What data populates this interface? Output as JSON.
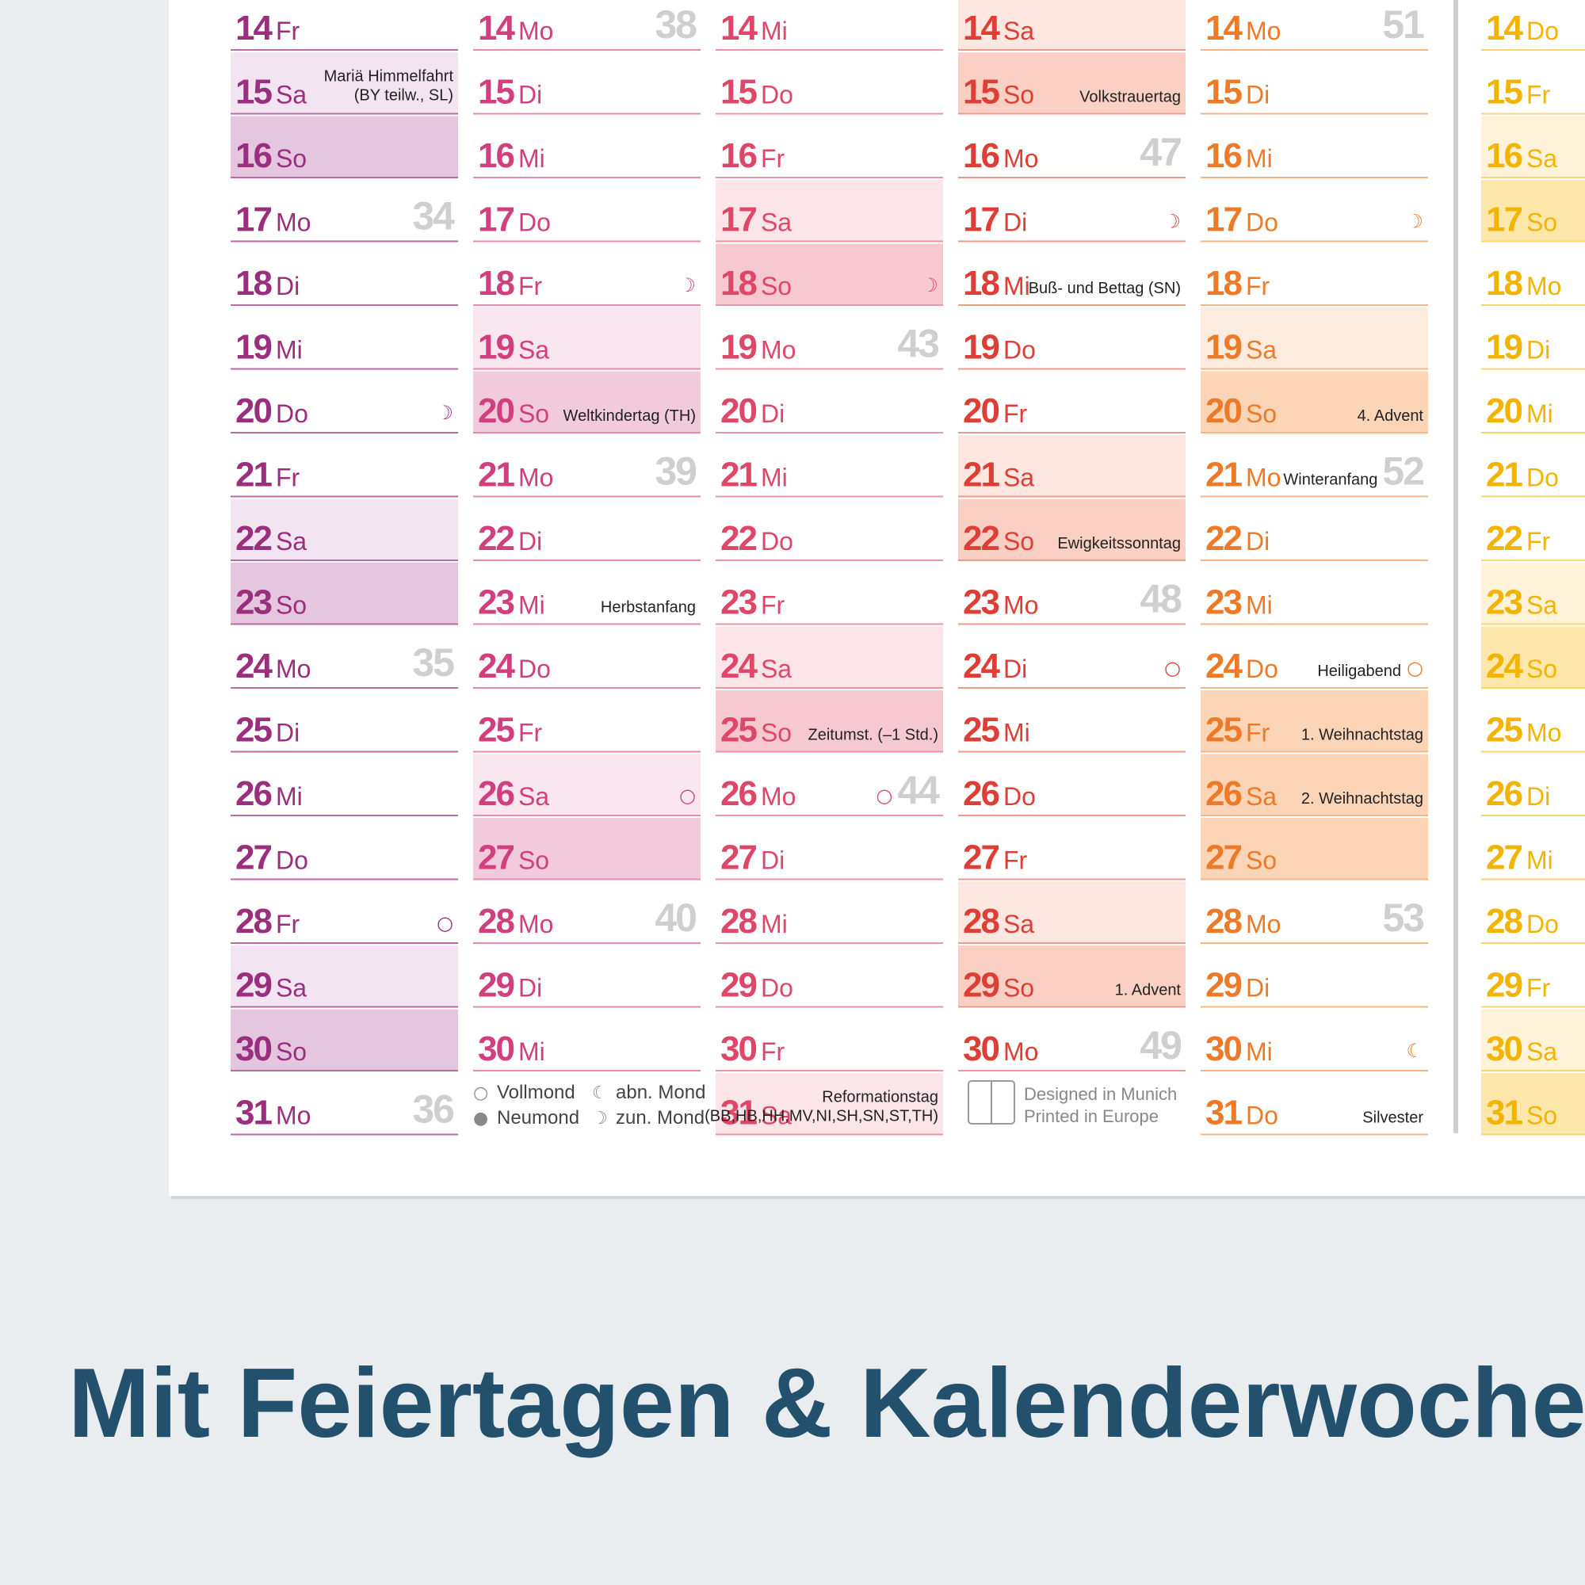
{
  "caption": "Mit Feiertagen & Kalenderwoche",
  "legend": [
    {
      "symbol": "○",
      "text": "Vollmond"
    },
    {
      "symbol": "●",
      "text": "Neumond"
    },
    {
      "symbol": "☾",
      "text": "abn. Mond"
    },
    {
      "symbol": "☽",
      "text": "zun. Mond"
    }
  ],
  "footer": {
    "line1": "Designed in Munich",
    "line2": "Printed in Europe"
  },
  "cols": [
    {
      "color": "#9a2f7d",
      "line": "#b86aa3",
      "sat": "#f2e4f0",
      "sun": "#e4c7df",
      "rows": [
        {
          "d": 14,
          "wd": "Fr"
        },
        {
          "d": 15,
          "wd": "Sa",
          "fill": "sat",
          "note": "Mariä Himmelfahrt",
          "note2": "(BY teilw., SL)"
        },
        {
          "d": 16,
          "wd": "So",
          "fill": "sun"
        },
        {
          "d": 17,
          "wd": "Mo",
          "kw": 34
        },
        {
          "d": 18,
          "wd": "Di"
        },
        {
          "d": 19,
          "wd": "Mi"
        },
        {
          "d": 20,
          "wd": "Do",
          "moon": "☽"
        },
        {
          "d": 21,
          "wd": "Fr"
        },
        {
          "d": 22,
          "wd": "Sa",
          "fill": "sat"
        },
        {
          "d": 23,
          "wd": "So",
          "fill": "sun"
        },
        {
          "d": 24,
          "wd": "Mo",
          "kw": 35
        },
        {
          "d": 25,
          "wd": "Di"
        },
        {
          "d": 26,
          "wd": "Mi"
        },
        {
          "d": 27,
          "wd": "Do"
        },
        {
          "d": 28,
          "wd": "Fr",
          "moon": "○"
        },
        {
          "d": 29,
          "wd": "Sa",
          "fill": "sat"
        },
        {
          "d": 30,
          "wd": "So",
          "fill": "sun"
        },
        {
          "d": 31,
          "wd": "Mo",
          "kw": 36
        }
      ]
    },
    {
      "color": "#d23f7e",
      "line": "#e58bb0",
      "sat": "#f9e6ef",
      "sun": "#f1cadc",
      "rows": [
        {
          "d": 14,
          "wd": "Mo",
          "kw": 38
        },
        {
          "d": 15,
          "wd": "Di"
        },
        {
          "d": 16,
          "wd": "Mi"
        },
        {
          "d": 17,
          "wd": "Do"
        },
        {
          "d": 18,
          "wd": "Fr",
          "moon": "☽"
        },
        {
          "d": 19,
          "wd": "Sa",
          "fill": "sat"
        },
        {
          "d": 20,
          "wd": "So",
          "fill": "sun",
          "note": "Weltkindertag (TH)"
        },
        {
          "d": 21,
          "wd": "Mo",
          "kw": 39
        },
        {
          "d": 22,
          "wd": "Di"
        },
        {
          "d": 23,
          "wd": "Mi",
          "note": "Herbstanfang"
        },
        {
          "d": 24,
          "wd": "Do"
        },
        {
          "d": 25,
          "wd": "Fr"
        },
        {
          "d": 26,
          "wd": "Sa",
          "fill": "sat",
          "moon": "○"
        },
        {
          "d": 27,
          "wd": "So",
          "fill": "sun"
        },
        {
          "d": 28,
          "wd": "Mo",
          "kw": 40
        },
        {
          "d": 29,
          "wd": "Di"
        },
        {
          "d": 30,
          "wd": "Mi"
        }
      ]
    },
    {
      "color": "#de4768",
      "line": "#ec93a6",
      "sat": "#fce5e9",
      "sun": "#f6c9d2",
      "rows": [
        {
          "d": 14,
          "wd": "Mi"
        },
        {
          "d": 15,
          "wd": "Do"
        },
        {
          "d": 16,
          "wd": "Fr"
        },
        {
          "d": 17,
          "wd": "Sa",
          "fill": "sat"
        },
        {
          "d": 18,
          "wd": "So",
          "fill": "sun",
          "moon": "☽"
        },
        {
          "d": 19,
          "wd": "Mo",
          "kw": 43
        },
        {
          "d": 20,
          "wd": "Di"
        },
        {
          "d": 21,
          "wd": "Mi"
        },
        {
          "d": 22,
          "wd": "Do"
        },
        {
          "d": 23,
          "wd": "Fr"
        },
        {
          "d": 24,
          "wd": "Sa",
          "fill": "sat"
        },
        {
          "d": 25,
          "wd": "So",
          "fill": "sun",
          "note": "Zeitumst. (–1 Std.)"
        },
        {
          "d": 26,
          "wd": "Mo",
          "moon": "○",
          "kw": 44
        },
        {
          "d": 27,
          "wd": "Di"
        },
        {
          "d": 28,
          "wd": "Mi"
        },
        {
          "d": 29,
          "wd": "Do"
        },
        {
          "d": 30,
          "wd": "Fr"
        },
        {
          "d": 31,
          "wd": "Sa",
          "fill": "sat",
          "note": "Reformationstag",
          "note2": "(BB,HB,HH,MV,NI,SH,SN,ST,TH)"
        }
      ]
    },
    {
      "color": "#dd3f36",
      "line": "#ee9a8a",
      "sat": "#fde7e0",
      "sun": "#f9d0c3",
      "rows": [
        {
          "d": 14,
          "wd": "Sa",
          "fill": "sat"
        },
        {
          "d": 15,
          "wd": "So",
          "fill": "sun",
          "note": "Volkstrauertag"
        },
        {
          "d": 16,
          "wd": "Mo",
          "kw": 47
        },
        {
          "d": 17,
          "wd": "Di",
          "moon": "☽"
        },
        {
          "d": 18,
          "wd": "Mi",
          "note": "Buß- und Bettag (SN)"
        },
        {
          "d": 19,
          "wd": "Do"
        },
        {
          "d": 20,
          "wd": "Fr"
        },
        {
          "d": 21,
          "wd": "Sa",
          "fill": "sat"
        },
        {
          "d": 22,
          "wd": "So",
          "fill": "sun",
          "note": "Ewigkeitssonntag"
        },
        {
          "d": 23,
          "wd": "Mo",
          "kw": 48
        },
        {
          "d": 24,
          "wd": "Di",
          "moon": "○"
        },
        {
          "d": 25,
          "wd": "Mi"
        },
        {
          "d": 26,
          "wd": "Do"
        },
        {
          "d": 27,
          "wd": "Fr"
        },
        {
          "d": 28,
          "wd": "Sa",
          "fill": "sat"
        },
        {
          "d": 29,
          "wd": "So",
          "fill": "sun",
          "note": "1. Advent"
        },
        {
          "d": 30,
          "wd": "Mo",
          "kw": 49
        }
      ]
    },
    {
      "color": "#ec7a28",
      "line": "#f4b685",
      "sat": "#fdecde",
      "sun": "#fbd5b6",
      "rows": [
        {
          "d": 14,
          "wd": "Mo",
          "kw": 51
        },
        {
          "d": 15,
          "wd": "Di"
        },
        {
          "d": 16,
          "wd": "Mi"
        },
        {
          "d": 17,
          "wd": "Do",
          "moon": "☽"
        },
        {
          "d": 18,
          "wd": "Fr"
        },
        {
          "d": 19,
          "wd": "Sa",
          "fill": "sat"
        },
        {
          "d": 20,
          "wd": "So",
          "fill": "sun",
          "note": "4. Advent"
        },
        {
          "d": 21,
          "wd": "Mo",
          "note": "Winteranfang",
          "kw": 52
        },
        {
          "d": 22,
          "wd": "Di"
        },
        {
          "d": 23,
          "wd": "Mi"
        },
        {
          "d": 24,
          "wd": "Do",
          "note": "Heiligabend",
          "moon": "○"
        },
        {
          "d": 25,
          "wd": "Fr",
          "fill": "sun",
          "note": "1. Weihnachtstag"
        },
        {
          "d": 26,
          "wd": "Sa",
          "fill": "sun",
          "note": "2. Weihnachtstag"
        },
        {
          "d": 27,
          "wd": "So",
          "fill": "sun"
        },
        {
          "d": 28,
          "wd": "Mo",
          "kw": 53
        },
        {
          "d": 29,
          "wd": "Di"
        },
        {
          "d": 30,
          "wd": "Mi",
          "moon": "☾"
        },
        {
          "d": 31,
          "wd": "Do",
          "note": "Silvester"
        }
      ]
    },
    {
      "color": "#f2b400",
      "line": "#f8d670",
      "sat": "#fef3d8",
      "sun": "#fde7aa",
      "rows": [
        {
          "d": 14,
          "wd": "Do"
        },
        {
          "d": 15,
          "wd": "Fr"
        },
        {
          "d": 16,
          "wd": "Sa",
          "fill": "sat"
        },
        {
          "d": 17,
          "wd": "So",
          "fill": "sun"
        },
        {
          "d": 18,
          "wd": "Mo"
        },
        {
          "d": 19,
          "wd": "Di"
        },
        {
          "d": 20,
          "wd": "Mi"
        },
        {
          "d": 21,
          "wd": "Do"
        },
        {
          "d": 22,
          "wd": "Fr"
        },
        {
          "d": 23,
          "wd": "Sa",
          "fill": "sat"
        },
        {
          "d": 24,
          "wd": "So",
          "fill": "sun"
        },
        {
          "d": 25,
          "wd": "Mo"
        },
        {
          "d": 26,
          "wd": "Di"
        },
        {
          "d": 27,
          "wd": "Mi"
        },
        {
          "d": 28,
          "wd": "Do"
        },
        {
          "d": 29,
          "wd": "Fr"
        },
        {
          "d": 30,
          "wd": "Sa",
          "fill": "sat"
        },
        {
          "d": 31,
          "wd": "So",
          "fill": "sun"
        }
      ]
    }
  ]
}
